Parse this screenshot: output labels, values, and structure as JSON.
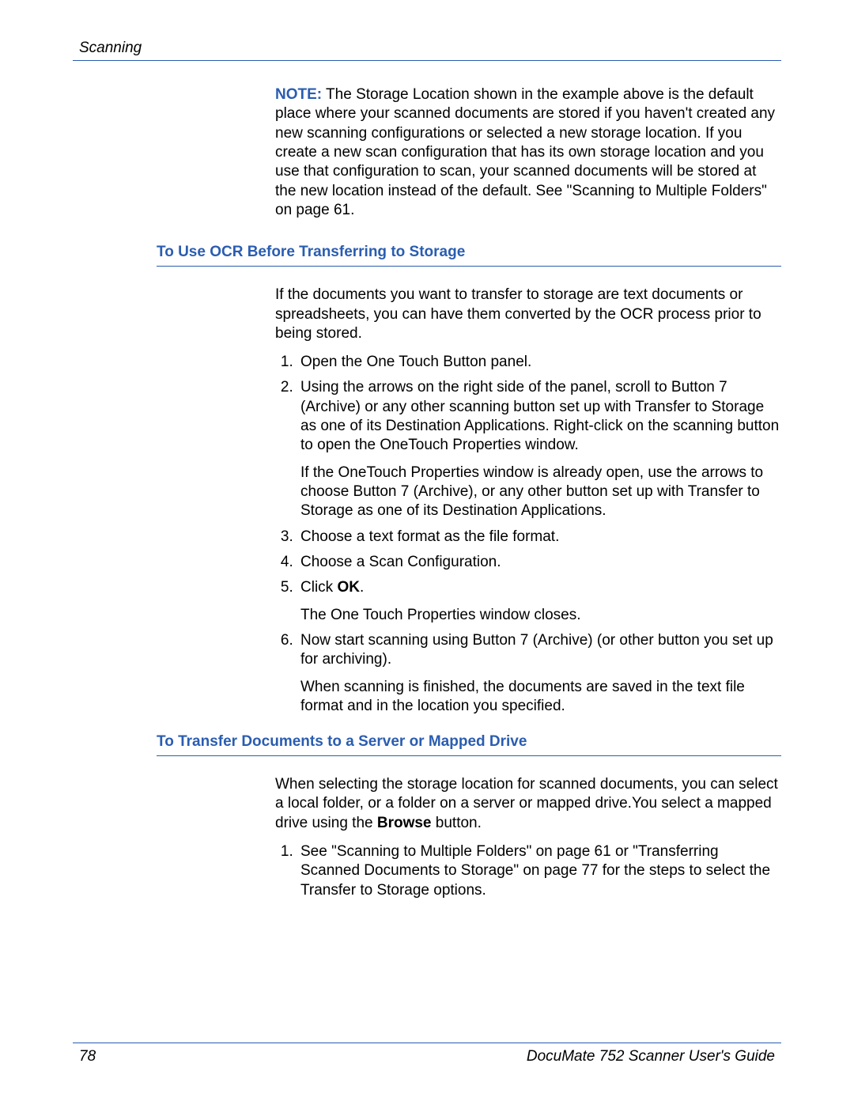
{
  "colors": {
    "accent": "#2a5db0",
    "text": "#000000",
    "background": "#ffffff"
  },
  "typography": {
    "body_fontsize_pt": 14,
    "heading_fontsize_pt": 14,
    "line_height": 1.28,
    "font_family": "Arial"
  },
  "header": {
    "left": "Scanning"
  },
  "footer": {
    "page_number": "78",
    "right": "DocuMate 752 Scanner User's Guide"
  },
  "note": {
    "label": "NOTE:",
    "text": " The Storage Location shown in the example above is the default place where your scanned documents are stored if you haven't created any new scanning configurations or selected a new storage location. If you create a new scan configuration that has its own storage location and you use that configuration to scan, your scanned documents will be stored at the new location instead of the default. See \"Scanning to Multiple Folders\" on page 61."
  },
  "section1": {
    "heading": "To Use OCR Before Transferring to Storage",
    "intro": "If the documents you want to transfer to storage are text documents or spreadsheets, you can have them converted by the OCR process prior to being stored.",
    "steps": [
      {
        "main": "Open the One Touch Button panel."
      },
      {
        "main": "Using the arrows on the right side of the panel, scroll to Button 7 (Archive) or any other scanning button set up with Transfer to Storage as one of its Destination Applications. Right-click on the scanning button to open the OneTouch Properties window.",
        "sub": "If the OneTouch Properties window is already open, use the arrows to choose Button 7 (Archive), or any other button set up with Transfer to Storage as one of its Destination Applications."
      },
      {
        "main": "Choose a text format as the file format."
      },
      {
        "main": "Choose a Scan Configuration."
      },
      {
        "main_pre": "Click ",
        "main_bold": "OK",
        "main_post": ".",
        "sub": "The One Touch Properties window closes."
      },
      {
        "main": "Now start scanning using Button 7 (Archive) (or other button you set up for archiving).",
        "sub": "When scanning is finished, the documents are saved in the text file format and in the location you specified."
      }
    ]
  },
  "section2": {
    "heading": "To Transfer Documents to a Server or Mapped Drive",
    "intro_pre": "When selecting the storage location for scanned documents, you can select a local folder, or a folder on a server or mapped drive.You select a mapped drive using the ",
    "intro_bold": "Browse",
    "intro_post": " button.",
    "steps": [
      {
        "main": "See \"Scanning to Multiple Folders\" on page 61 or \"Transferring Scanned Documents to Storage\" on page 77 for the steps to select the Transfer to Storage options."
      }
    ]
  }
}
